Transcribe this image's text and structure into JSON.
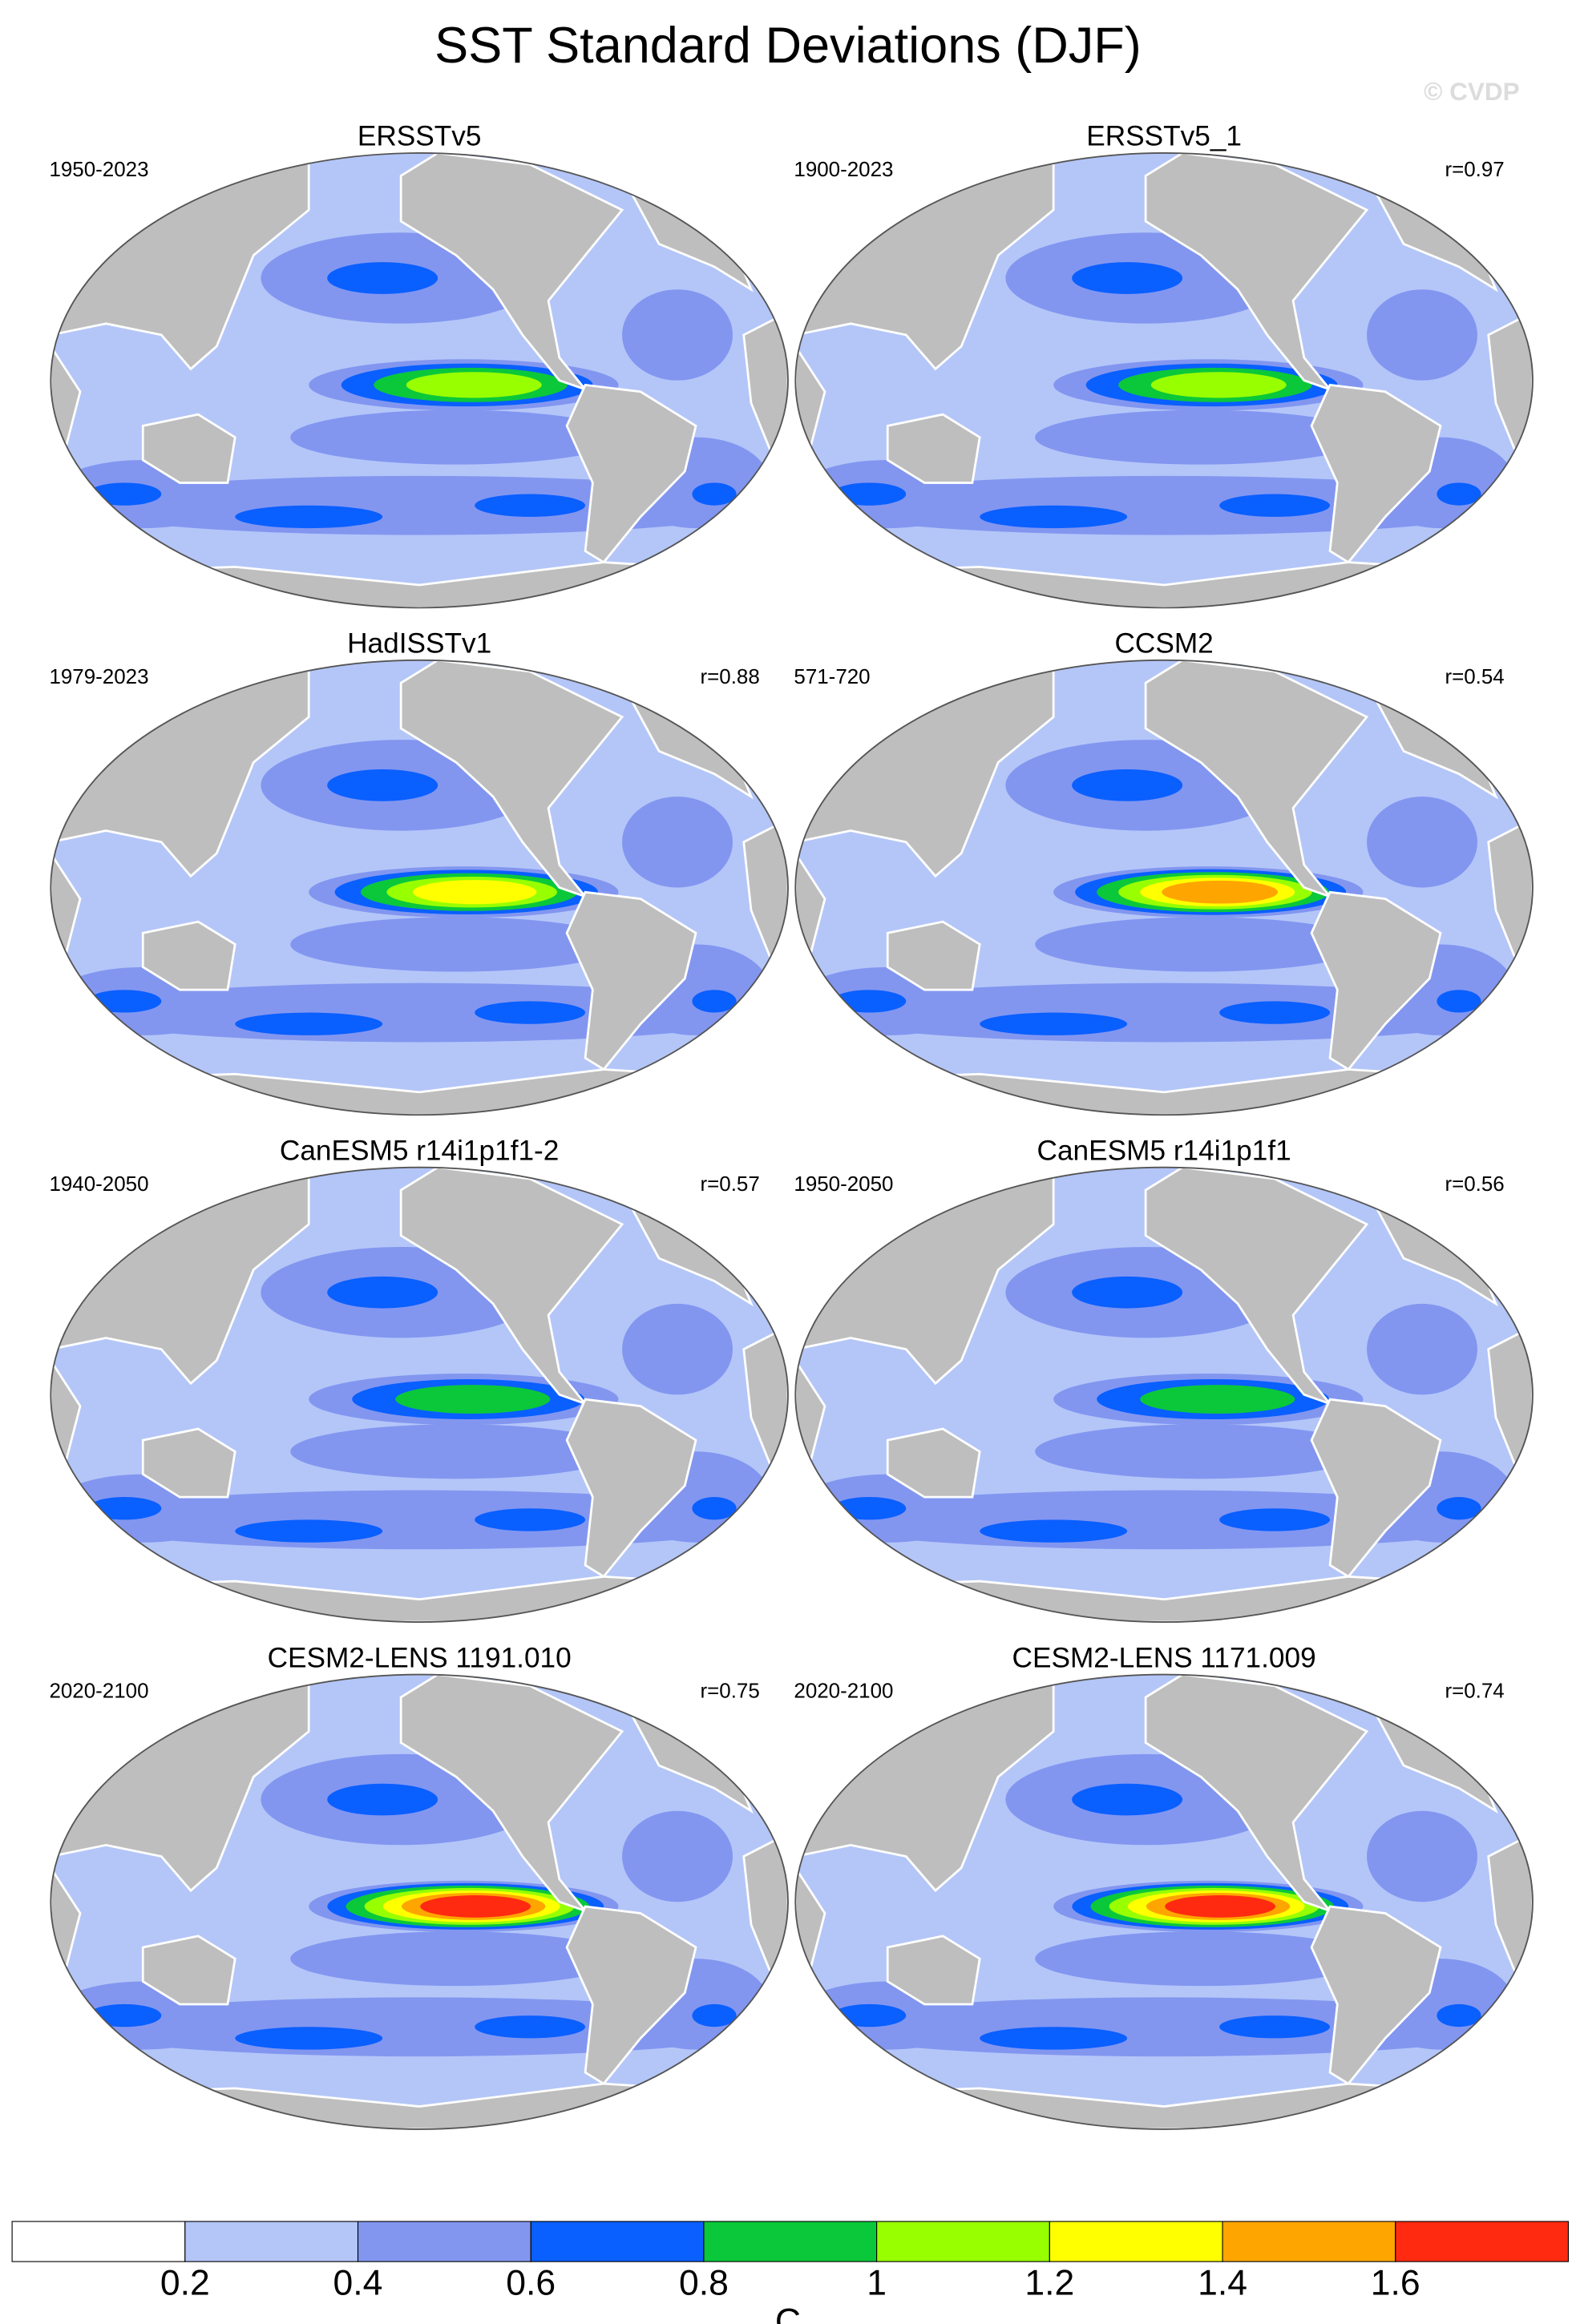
{
  "title": "SST Standard Deviations (DJF)",
  "watermark": "© CVDP",
  "panels": [
    {
      "title": "ERSSTv5",
      "period": "1950-2023"
    },
    {
      "title": "ERSSTv5_1",
      "period": "1900-2023",
      "r": "r=0.97"
    },
    {
      "title": "HadISSTv1",
      "period": "1979-2023",
      "r": "r=0.88"
    },
    {
      "title": "CCSM2",
      "period": "571-720",
      "r": "r=0.54"
    },
    {
      "title": "CanESM5 r14i1p1f1-2",
      "period": "1940-2050",
      "r": "r=0.57"
    },
    {
      "title": "CanESM5 r14i1p1f1",
      "period": "1950-2050",
      "r": "r=0.56"
    },
    {
      "title": "CESM2-LENS 1191.010",
      "period": "2020-2100",
      "r": "r=0.75"
    },
    {
      "title": "CESM2-LENS 1171.009",
      "period": "2020-2100",
      "r": "r=0.74"
    }
  ],
  "colorbar": {
    "ticks": [
      0.2,
      0.4,
      0.6,
      0.8,
      1,
      1.2,
      1.4,
      1.6
    ],
    "colors": [
      "#ffffff",
      "#b4c6f8",
      "#8296f0",
      "#0a5fff",
      "#0ac83a",
      "#98ff00",
      "#ffff00",
      "#ffa500",
      "#ff2a10"
    ],
    "unit": "C"
  }
}
